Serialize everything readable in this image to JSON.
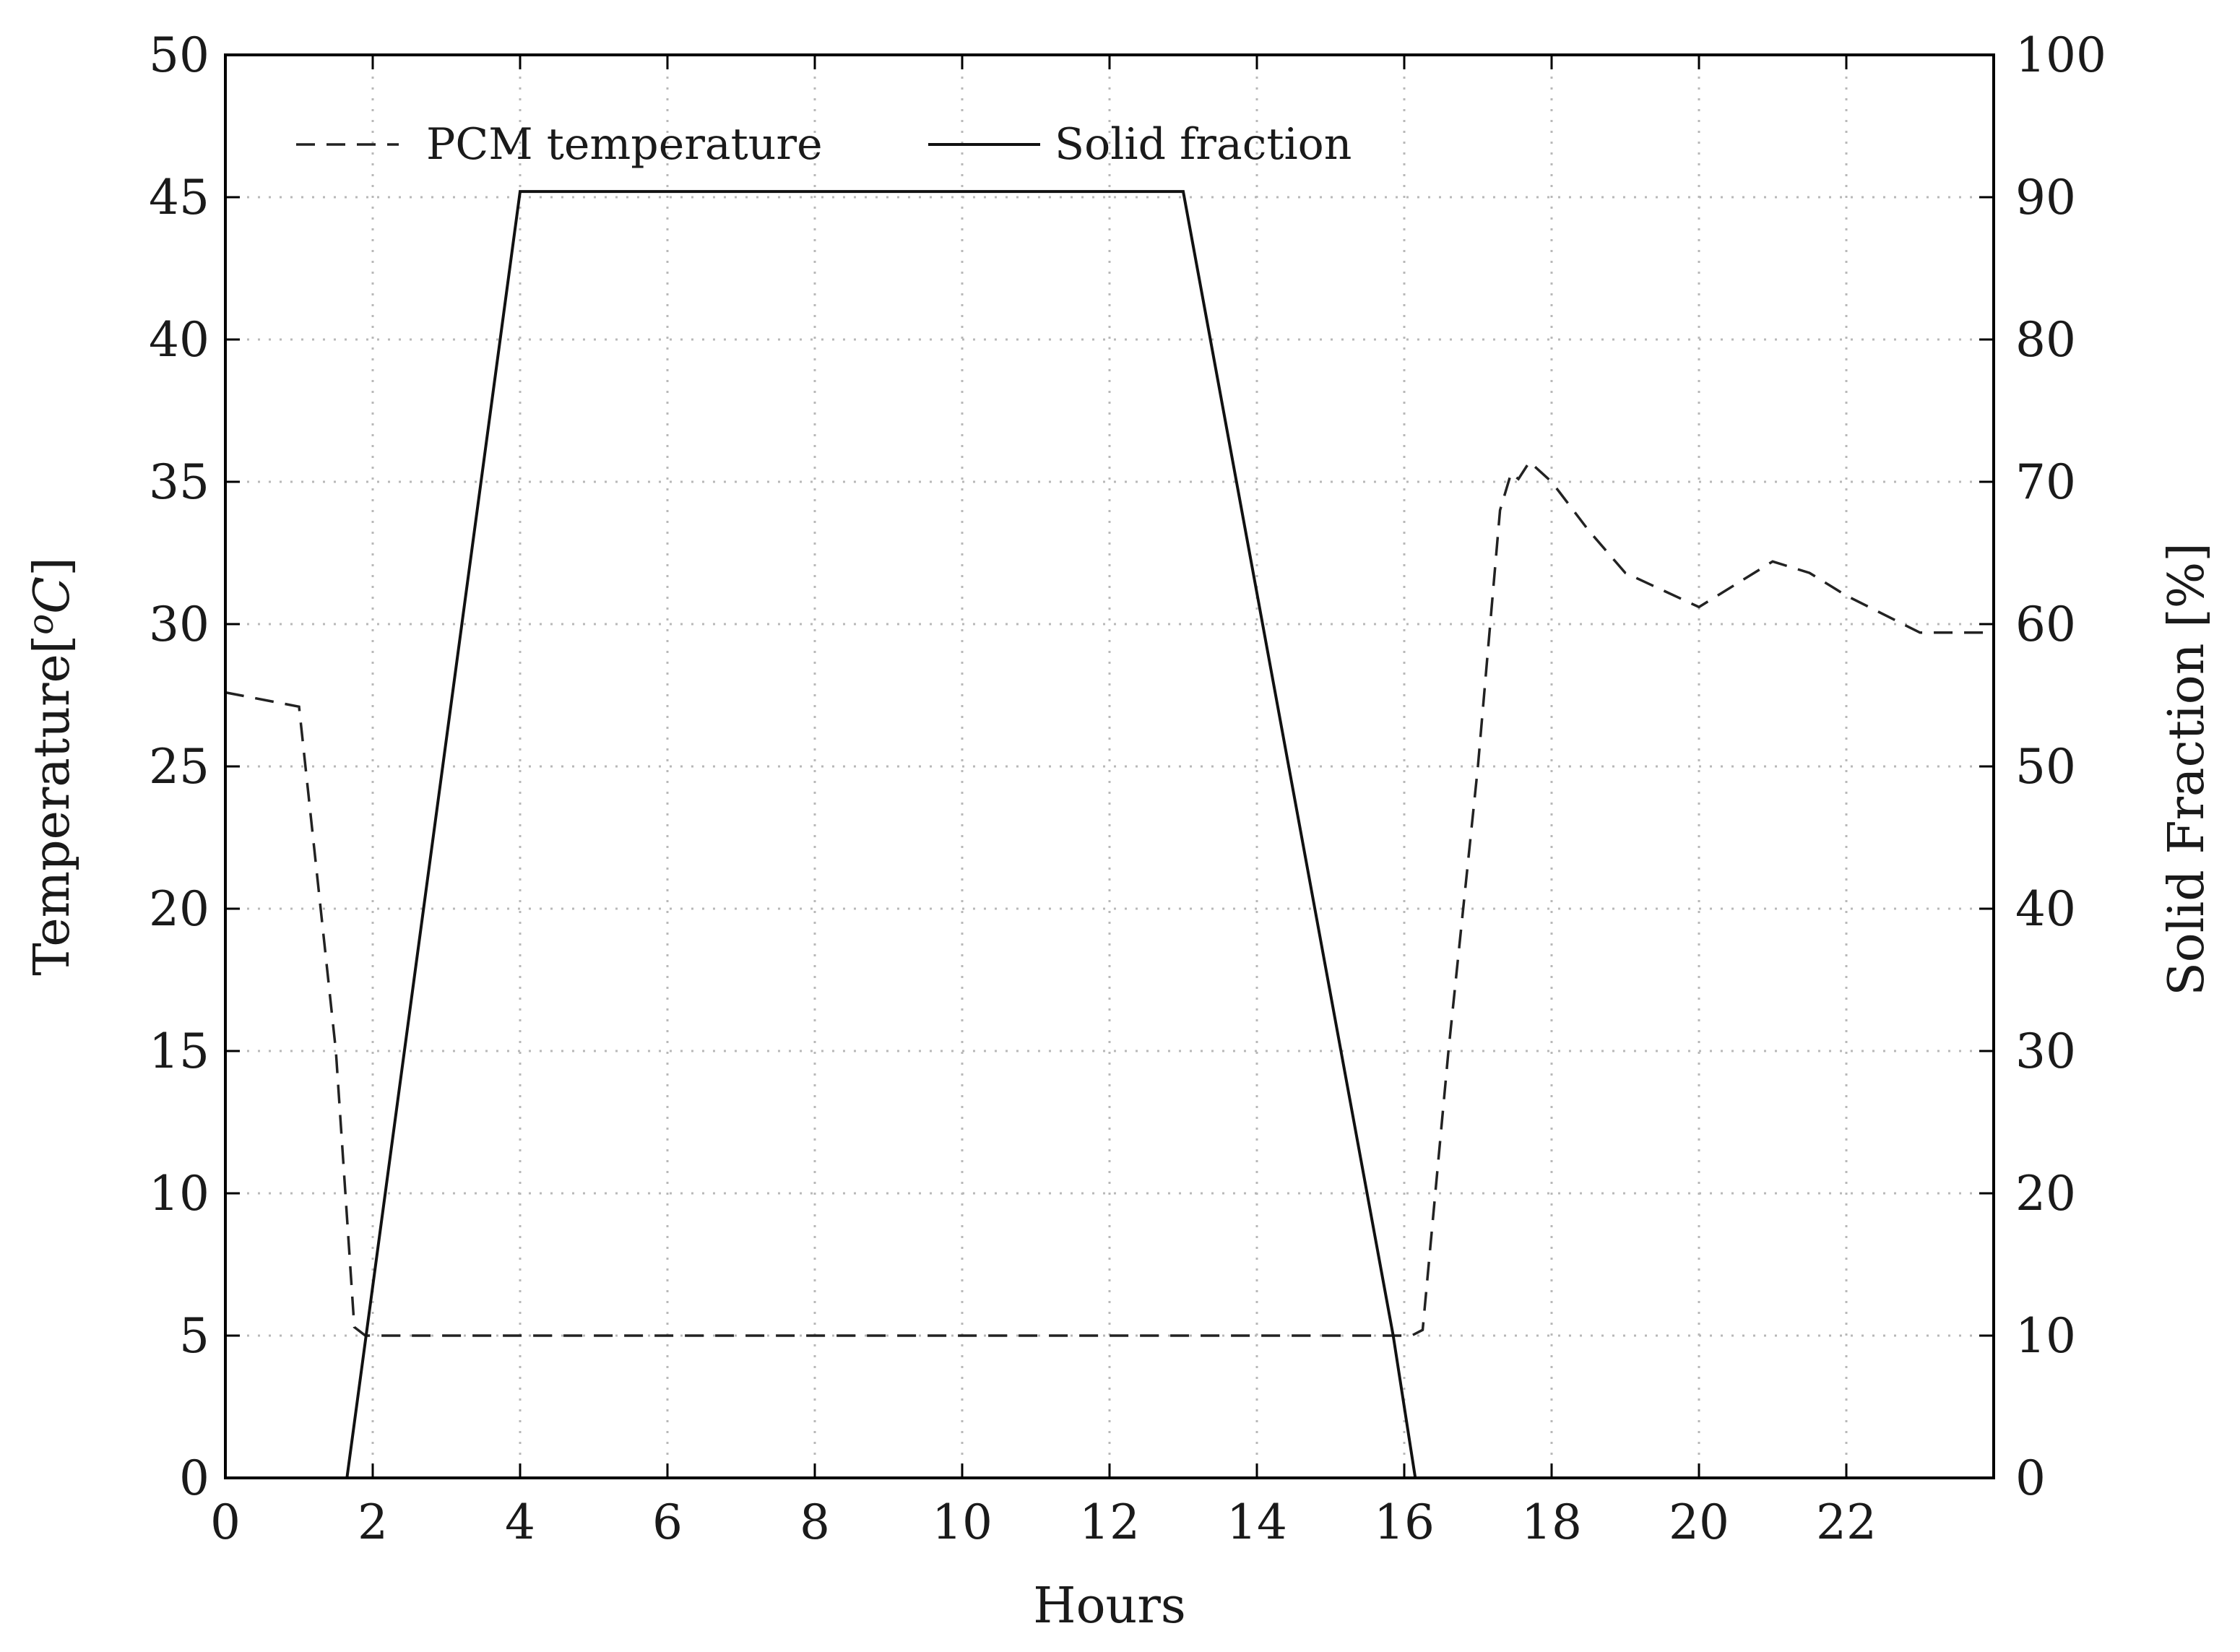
{
  "chart_data": {
    "type": "line",
    "title": "",
    "xlabel": "Hours",
    "ylabel_left": "Temperature[",
    "ylabel_left_unit": "o",
    "ylabel_left_unit_sym": "C",
    "ylabel_left_close": "]",
    "ylabel_right": "Solid Fraction [%]",
    "xlim": [
      0,
      24
    ],
    "ylim_left": [
      0,
      50
    ],
    "ylim_right": [
      0,
      100
    ],
    "x_ticks": [
      "0",
      "2",
      "4",
      "6",
      "8",
      "10",
      "12",
      "14",
      "16",
      "18",
      "20",
      "22"
    ],
    "y_left_ticks": [
      "0",
      "5",
      "10",
      "15",
      "20",
      "25",
      "30",
      "35",
      "40",
      "45",
      "50"
    ],
    "y_right_ticks": [
      "0",
      "10",
      "20",
      "30",
      "40",
      "50",
      "60",
      "70",
      "80",
      "90",
      "100"
    ],
    "grid": true,
    "legend_position": "top-left",
    "series": [
      {
        "name": "PCM temperature",
        "axis": "left",
        "style": "dashed",
        "color": "#222222",
        "points": [
          [
            0,
            27.6
          ],
          [
            1.0,
            27.1
          ],
          [
            1.5,
            15.0
          ],
          [
            1.75,
            5.3
          ],
          [
            1.9,
            5.0
          ],
          [
            16.1,
            5.0
          ],
          [
            16.25,
            5.2
          ],
          [
            16.6,
            15.0
          ],
          [
            17.0,
            25.0
          ],
          [
            17.2,
            31.0
          ],
          [
            17.3,
            34.0
          ],
          [
            17.45,
            35.3
          ],
          [
            17.55,
            35.1
          ],
          [
            17.7,
            35.7
          ],
          [
            18.0,
            35.0
          ],
          [
            18.5,
            33.3
          ],
          [
            19.0,
            31.8
          ],
          [
            20.0,
            30.6
          ],
          [
            21.0,
            32.2
          ],
          [
            21.5,
            31.8
          ],
          [
            22.0,
            31.0
          ],
          [
            23.0,
            29.7
          ],
          [
            24.0,
            29.7
          ]
        ]
      },
      {
        "name": "Solid fraction",
        "axis": "right",
        "style": "solid",
        "color": "#111111",
        "points": [
          [
            1.65,
            0
          ],
          [
            4.0,
            90.4
          ],
          [
            13.0,
            90.4
          ],
          [
            15.85,
            10.0
          ],
          [
            16.15,
            0
          ]
        ]
      }
    ]
  }
}
